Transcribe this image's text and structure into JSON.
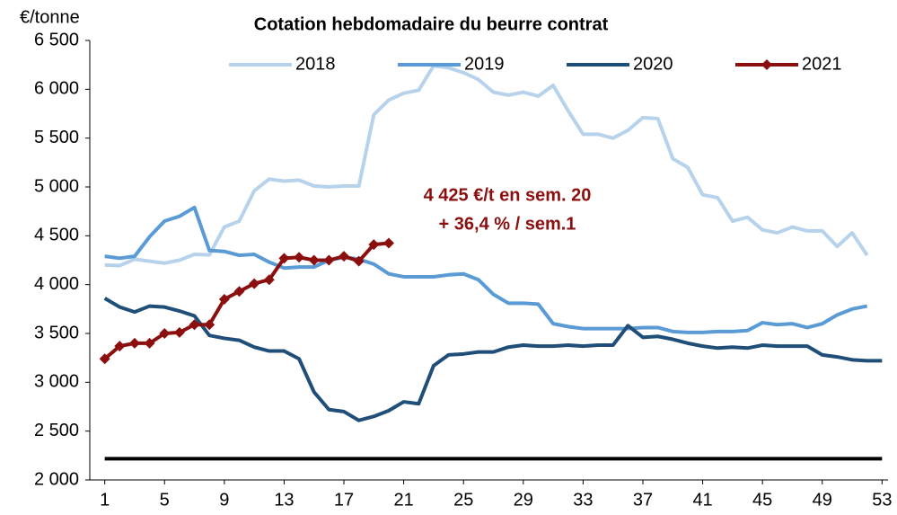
{
  "chart_data": {
    "type": "line",
    "title": "Cotation hebdomadaire du beurre contrat",
    "y_axis_label": "€/tonne",
    "annotation": [
      "4 425 €/t en sem. 20",
      "+ 36,4 % / sem.1"
    ],
    "x": [
      1,
      2,
      3,
      4,
      5,
      6,
      7,
      8,
      9,
      10,
      11,
      12,
      13,
      14,
      15,
      16,
      17,
      18,
      19,
      20,
      21,
      22,
      23,
      24,
      25,
      26,
      27,
      28,
      29,
      30,
      31,
      32,
      33,
      34,
      35,
      36,
      37,
      38,
      39,
      40,
      41,
      42,
      43,
      44,
      45,
      46,
      47,
      48,
      49,
      50,
      51,
      52,
      53
    ],
    "xlim": [
      0,
      54
    ],
    "xticks": [
      1,
      5,
      9,
      13,
      17,
      21,
      25,
      29,
      33,
      37,
      41,
      45,
      49,
      53
    ],
    "ylim": [
      2000,
      6500
    ],
    "yticks": [
      {
        "value": 2000,
        "label": "2 000"
      },
      {
        "value": 2500,
        "label": "2 500"
      },
      {
        "value": 3000,
        "label": "3 000"
      },
      {
        "value": 3500,
        "label": "3 500"
      },
      {
        "value": 4000,
        "label": "4 000"
      },
      {
        "value": 4500,
        "label": "4 500"
      },
      {
        "value": 5000,
        "label": "5 000"
      },
      {
        "value": 5500,
        "label": "5 500"
      },
      {
        "value": 6000,
        "label": "6 000"
      },
      {
        "value": 6500,
        "label": "6 500"
      }
    ],
    "series": [
      {
        "name": "2018",
        "color": "#b7d3ec",
        "values": [
          4200,
          4195,
          4260,
          4240,
          4220,
          4250,
          4310,
          4305,
          4590,
          4650,
          4960,
          5080,
          5060,
          5070,
          5010,
          5000,
          5010,
          5010,
          5740,
          5890,
          5960,
          5990,
          6240,
          6220,
          6170,
          6100,
          5970,
          5940,
          5970,
          5930,
          6040,
          5780,
          5540,
          5540,
          5500,
          5580,
          5710,
          5700,
          5290,
          5200,
          4920,
          4890,
          4650,
          4690,
          4560,
          4530,
          4590,
          4550,
          4550,
          4390,
          4530,
          4300,
          null
        ]
      },
      {
        "name": "2019",
        "color": "#5b9bd5",
        "values": [
          4290,
          4270,
          4290,
          4490,
          4650,
          4700,
          4790,
          4350,
          4340,
          4300,
          4310,
          4230,
          4170,
          4180,
          4180,
          4250,
          4280,
          4260,
          4210,
          4110,
          4080,
          4080,
          4080,
          4100,
          4110,
          4050,
          3900,
          3810,
          3810,
          3800,
          3600,
          3570,
          3550,
          3550,
          3550,
          3550,
          3560,
          3560,
          3520,
          3510,
          3510,
          3520,
          3520,
          3530,
          3610,
          3590,
          3600,
          3560,
          3600,
          3690,
          3750,
          3780,
          null
        ]
      },
      {
        "name": "2020",
        "color": "#1f4e79",
        "values": [
          3860,
          3770,
          3720,
          3780,
          3770,
          3730,
          3680,
          3480,
          3450,
          3430,
          3360,
          3320,
          3320,
          3240,
          2900,
          2720,
          2700,
          2610,
          2650,
          2710,
          2800,
          2780,
          3170,
          3280,
          3290,
          3310,
          3310,
          3360,
          3380,
          3370,
          3370,
          3380,
          3370,
          3380,
          3380,
          3580,
          3460,
          3470,
          3440,
          3400,
          3370,
          3350,
          3360,
          3350,
          3380,
          3370,
          3370,
          3370,
          3280,
          3260,
          3230,
          3220,
          3220
        ]
      },
      {
        "name": "2021",
        "color": "#8b0f0f",
        "marker": "diamond",
        "values": [
          3240,
          3370,
          3400,
          3400,
          3500,
          3510,
          3590,
          3590,
          3850,
          3930,
          4010,
          4050,
          4270,
          4280,
          4250,
          4250,
          4290,
          4240,
          4410,
          4425,
          null,
          null,
          null,
          null,
          null,
          null,
          null,
          null,
          null,
          null,
          null,
          null,
          null,
          null,
          null,
          null,
          null,
          null,
          null,
          null,
          null,
          null,
          null,
          null,
          null,
          null,
          null,
          null,
          null,
          null,
          null,
          null,
          null
        ]
      },
      {
        "color": "#000000",
        "values": [
          2217,
          2217,
          2217,
          2217,
          2217,
          2217,
          2217,
          2217,
          2217,
          2217,
          2217,
          2217,
          2217,
          2217,
          2217,
          2217,
          2217,
          2217,
          2217,
          2217,
          2217,
          2217,
          2217,
          2217,
          2217,
          2217,
          2217,
          2217,
          2217,
          2217,
          2217,
          2217,
          2217,
          2217,
          2217,
          2217,
          2217,
          2217,
          2217,
          2217,
          2217,
          2217,
          2217,
          2217,
          2217,
          2217,
          2217,
          2217,
          2217,
          2217,
          2217,
          2217,
          2217
        ]
      }
    ]
  }
}
